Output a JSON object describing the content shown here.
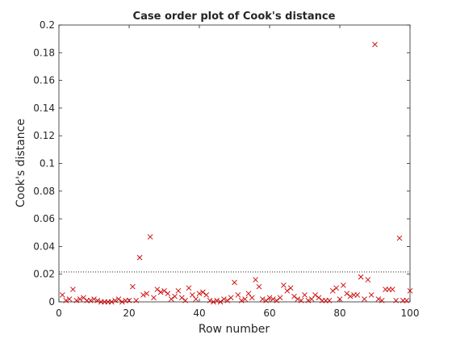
{
  "chart_data": {
    "type": "scatter",
    "title": "Case order plot of Cook's distance",
    "xlabel": "Row number",
    "ylabel": "Cook's distance",
    "xlim": [
      0,
      100
    ],
    "ylim": [
      0,
      0.2
    ],
    "xticks": [
      0,
      20,
      40,
      60,
      80,
      100
    ],
    "yticks": [
      0,
      0.02,
      0.04,
      0.06,
      0.08,
      0.1,
      0.12,
      0.14,
      0.16,
      0.18,
      0.2
    ],
    "threshold": 0.0216,
    "color": "#cc0000",
    "x": [
      1,
      2,
      3,
      4,
      5,
      6,
      7,
      8,
      9,
      10,
      11,
      12,
      13,
      14,
      15,
      16,
      17,
      18,
      19,
      20,
      21,
      22,
      23,
      24,
      25,
      26,
      27,
      28,
      29,
      30,
      31,
      32,
      33,
      34,
      35,
      36,
      37,
      38,
      39,
      40,
      41,
      42,
      43,
      44,
      45,
      46,
      47,
      48,
      49,
      50,
      51,
      52,
      53,
      54,
      55,
      56,
      57,
      58,
      59,
      60,
      61,
      62,
      63,
      64,
      65,
      66,
      67,
      68,
      69,
      70,
      71,
      72,
      73,
      74,
      75,
      76,
      77,
      78,
      79,
      80,
      81,
      82,
      83,
      84,
      85,
      86,
      87,
      88,
      89,
      90,
      91,
      92,
      93,
      94,
      95,
      96,
      97,
      98,
      99,
      100
    ],
    "values": [
      0.005,
      0.001,
      0.002,
      0.009,
      0.001,
      0.002,
      0.003,
      0.001,
      0.001,
      0.002,
      0.001,
      0,
      0,
      0,
      0,
      0.001,
      0.002,
      0,
      0.001,
      0.001,
      0.011,
      0.001,
      0.032,
      0.005,
      0.006,
      0.047,
      0.003,
      0.009,
      0.007,
      0.008,
      0.006,
      0.002,
      0.004,
      0.008,
      0.003,
      0.001,
      0.01,
      0.005,
      0.002,
      0.006,
      0.007,
      0.005,
      0.001,
      0,
      0.001,
      0,
      0.002,
      0.001,
      0.003,
      0.014,
      0.005,
      0.001,
      0.002,
      0.006,
      0.003,
      0.016,
      0.011,
      0.002,
      0.001,
      0.003,
      0.002,
      0.001,
      0.003,
      0.012,
      0.008,
      0.01,
      0.004,
      0.002,
      0.001,
      0.005,
      0.001,
      0.002,
      0.005,
      0.003,
      0.001,
      0.001,
      0.001,
      0.008,
      0.01,
      0.002,
      0.012,
      0.006,
      0.004,
      0.005,
      0.005,
      0.018,
      0.002,
      0.016,
      0.005,
      0.186,
      0.002,
      0.001,
      0.009,
      0.009,
      0.009,
      0.001,
      0.046,
      0.001,
      0.001,
      0.008
    ]
  }
}
